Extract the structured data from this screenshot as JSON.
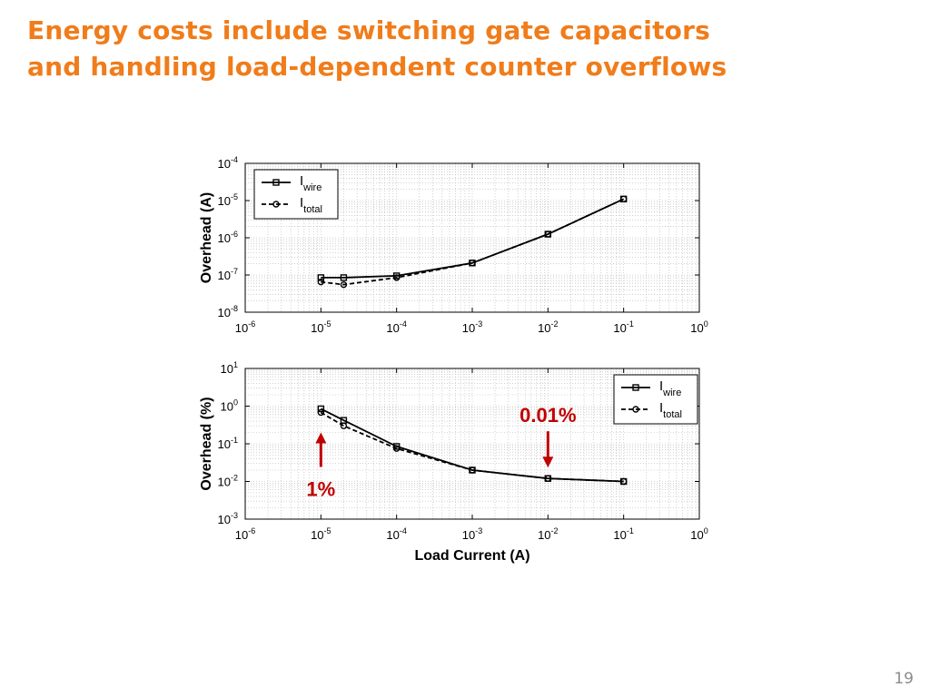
{
  "slide": {
    "title_lines": [
      "Energy costs include switching gate capacitors",
      "and handling load-dependent counter overflows"
    ],
    "page_number": "19"
  },
  "colors": {
    "title": "#f07c1a",
    "annotation": "#c00000",
    "series": "#000000",
    "grid": "#b4b4b4",
    "page_number": "#8c8c8c"
  },
  "chart_data": [
    {
      "type": "line",
      "ylabel": "Overhead (A)",
      "xlabel": "",
      "x_scale": "log",
      "y_scale": "log",
      "xlim": [
        1e-06,
        1
      ],
      "ylim": [
        1e-08,
        0.0001
      ],
      "grid": true,
      "legend_position": "top-left",
      "x_ticks": [
        {
          "base": "10",
          "exp": "-6"
        },
        {
          "base": "10",
          "exp": "-5"
        },
        {
          "base": "10",
          "exp": "-4"
        },
        {
          "base": "10",
          "exp": "-3"
        },
        {
          "base": "10",
          "exp": "-2"
        },
        {
          "base": "10",
          "exp": "-1"
        },
        {
          "base": "10",
          "exp": "0"
        }
      ],
      "y_ticks": [
        {
          "base": "10",
          "exp": "-8"
        },
        {
          "base": "10",
          "exp": "-7"
        },
        {
          "base": "10",
          "exp": "-6"
        },
        {
          "base": "10",
          "exp": "-5"
        },
        {
          "base": "10",
          "exp": "-4"
        }
      ],
      "series": [
        {
          "name": "I",
          "name_sub": "wire",
          "line": "solid",
          "marker": "square",
          "x": [
            1e-05,
            2e-05,
            0.0001,
            0.001,
            0.01,
            0.1
          ],
          "y": [
            8.5e-08,
            8.5e-08,
            9.5e-08,
            2.1e-07,
            1.25e-06,
            1.1e-05
          ]
        },
        {
          "name": "I",
          "name_sub": "total",
          "line": "dashed",
          "marker": "circle",
          "x": [
            1e-05,
            2e-05,
            0.0001,
            0.001,
            0.01,
            0.1
          ],
          "y": [
            6.5e-08,
            5.5e-08,
            8.5e-08,
            2.1e-07,
            1.25e-06,
            1.1e-05
          ]
        }
      ]
    },
    {
      "type": "line",
      "ylabel": "Overhead (%)",
      "xlabel": "Load Current (A)",
      "x_scale": "log",
      "y_scale": "log",
      "xlim": [
        1e-06,
        1
      ],
      "ylim": [
        0.001,
        10
      ],
      "grid": true,
      "legend_position": "top-right",
      "x_ticks": [
        {
          "base": "10",
          "exp": "-6"
        },
        {
          "base": "10",
          "exp": "-5"
        },
        {
          "base": "10",
          "exp": "-4"
        },
        {
          "base": "10",
          "exp": "-3"
        },
        {
          "base": "10",
          "exp": "-2"
        },
        {
          "base": "10",
          "exp": "-1"
        },
        {
          "base": "10",
          "exp": "0"
        }
      ],
      "y_ticks": [
        {
          "base": "10",
          "exp": "-3"
        },
        {
          "base": "10",
          "exp": "-2"
        },
        {
          "base": "10",
          "exp": "-1"
        },
        {
          "base": "10",
          "exp": "0"
        },
        {
          "base": "10",
          "exp": "1"
        }
      ],
      "series": [
        {
          "name": "I",
          "name_sub": "wire",
          "line": "solid",
          "marker": "square",
          "x": [
            1e-05,
            2e-05,
            0.0001,
            0.001,
            0.01,
            0.1
          ],
          "y": [
            0.85,
            0.42,
            0.085,
            0.02,
            0.012,
            0.01
          ]
        },
        {
          "name": "I",
          "name_sub": "total",
          "line": "dashed",
          "marker": "circle",
          "x": [
            1e-05,
            2e-05,
            0.0001,
            0.001,
            0.01,
            0.1
          ],
          "y": [
            0.68,
            0.3,
            0.075,
            0.02,
            0.012,
            0.01
          ]
        }
      ],
      "annotations": [
        {
          "text": "1%",
          "at_x": 1e-05,
          "at_y": 0.68,
          "arrow": "up",
          "label_position": "below"
        },
        {
          "text": "0.01%",
          "at_x": 0.01,
          "at_y": 0.012,
          "arrow": "down",
          "label_position": "above"
        }
      ]
    }
  ]
}
